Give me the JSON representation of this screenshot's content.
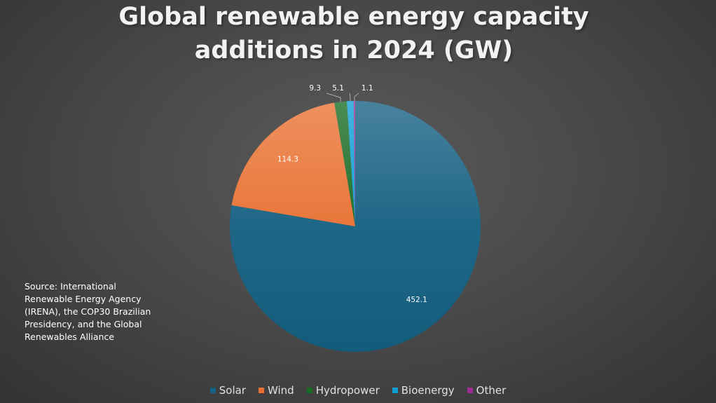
{
  "chart_data": {
    "type": "pie",
    "title_lines": [
      "Global renewable energy capacity",
      "additions in 2024 (GW)"
    ],
    "unit": "GW",
    "categories": [
      "Solar",
      "Wind",
      "Hydropower",
      "Bioenergy",
      "Other"
    ],
    "values": [
      452.1,
      114.3,
      9.3,
      5.1,
      1.1
    ],
    "value_labels": [
      "452.1",
      "114.3",
      "9.3",
      "5.1",
      "1.1"
    ],
    "colors": [
      "#156082",
      "#e97132",
      "#196b24",
      "#0f9ed5",
      "#a02b93"
    ],
    "legend_position": "bottom",
    "source_note": "Source: International Renewable Energy Agency (IRENA), the COP30 Brazilian Presidency, and the Global Renewables Alliance"
  }
}
